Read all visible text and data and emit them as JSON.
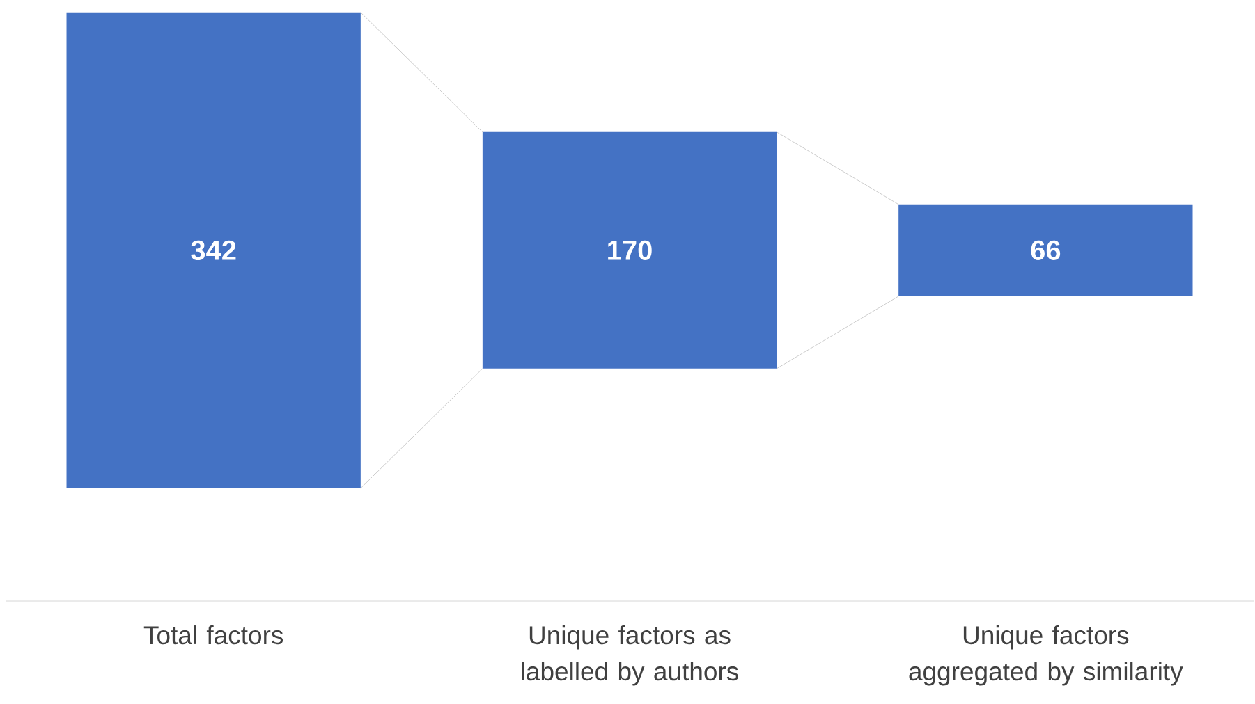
{
  "chart_data": {
    "type": "other",
    "categories": [
      "Total factors",
      "Unique factors as labelled by authors",
      "Unique factors aggregated by similarity"
    ],
    "values": [
      342,
      170,
      66
    ],
    "color": "#4472c4",
    "data_labels": true
  }
}
